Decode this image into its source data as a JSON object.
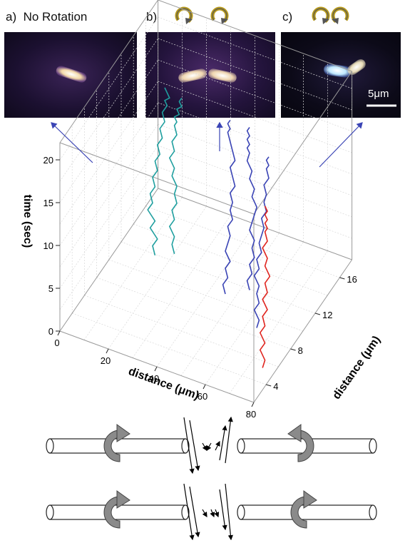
{
  "panels": [
    {
      "letter": "a)",
      "caption": "No Rotation"
    },
    {
      "letter": "b)",
      "caption": ""
    },
    {
      "letter": "c)",
      "caption": ""
    }
  ],
  "scale_bar": "5μm",
  "colors": {
    "teal": "#1f9f9f",
    "blue": "#3a44b5",
    "red": "#e0251f",
    "rotor": "#8a8a8a"
  },
  "chart_data": {
    "type": "line",
    "zlabel": "time (sec)",
    "xlabel": "distance (μm)",
    "ylabel": "distance (μm)",
    "z_ticks": [
      "0",
      "5",
      "10",
      "15",
      "20"
    ],
    "x_ticks": [
      "0",
      "20",
      "40",
      "60",
      "80"
    ],
    "y_ticks": [
      "4",
      "8",
      "12",
      "16"
    ],
    "zlim": [
      0,
      22
    ],
    "xlim": [
      0,
      80
    ],
    "ylim": [
      2,
      18
    ],
    "series": [
      {
        "group": "a",
        "color": "#1f9f9f",
        "y_position": 10,
        "x": [
          19,
          18,
          20,
          17,
          19,
          16,
          18,
          17,
          19,
          18,
          20,
          19,
          21,
          20,
          22,
          21,
          23,
          22,
          24,
          23,
          25,
          24,
          23
        ],
        "t": [
          2.5,
          3.5,
          4.5,
          5.5,
          6.5,
          7.5,
          8.5,
          9.5,
          10.5,
          11.5,
          12.5,
          13.5,
          14.5,
          15.5,
          16.5,
          17.5,
          18.5,
          19.5,
          20.5,
          21.0,
          21.5,
          22.0,
          22.5
        ]
      },
      {
        "group": "a",
        "color": "#1f9f9f",
        "y_position": 10,
        "x": [
          27,
          26,
          27,
          25,
          27,
          26,
          28,
          27,
          28,
          26,
          27,
          25,
          27,
          26,
          28,
          27,
          28,
          27,
          29,
          28,
          30,
          29,
          30
        ],
        "t": [
          3.5,
          4.5,
          5.5,
          6.5,
          7.5,
          8.5,
          9.5,
          10.5,
          11.5,
          12.5,
          13.5,
          14.5,
          15.5,
          16.5,
          17.5,
          18.5,
          19.0,
          19.5,
          20.0,
          20.5,
          21.0,
          21.5,
          22.0
        ]
      },
      {
        "group": "b",
        "color": "#3a44b5",
        "y_position": 10,
        "x": [
          48,
          47,
          49,
          48,
          50,
          48,
          49,
          50,
          49,
          51,
          50,
          51,
          50,
          52,
          51,
          50,
          52,
          51,
          50,
          49,
          50,
          49,
          50
        ],
        "t": [
          1.0,
          2.0,
          3.0,
          4.0,
          5.0,
          6.0,
          7.0,
          8.0,
          9.0,
          10.0,
          11.0,
          12.0,
          13.0,
          14.0,
          15.0,
          16.0,
          17.0,
          18.0,
          19.0,
          20.0,
          20.5,
          21.0,
          21.5
        ]
      },
      {
        "group": "b",
        "color": "#3a44b5",
        "y_position": 10,
        "x": [
          58,
          57,
          59,
          58,
          60,
          59,
          60,
          58,
          59,
          60,
          61,
          59,
          60,
          58,
          59,
          57,
          58,
          57,
          58,
          57,
          58,
          57,
          58
        ],
        "t": [
          2.5,
          3.5,
          4.5,
          5.5,
          6.5,
          7.5,
          8.5,
          9.5,
          10.5,
          11.5,
          12.5,
          13.5,
          14.5,
          15.5,
          16.5,
          17.5,
          18.5,
          19.0,
          19.5,
          20.0,
          20.5,
          21.0,
          21.5
        ]
      },
      {
        "group": "c",
        "color": "#3a44b5",
        "y_position": 8,
        "x": [
          66,
          67,
          65,
          67,
          66,
          67,
          65,
          67,
          66,
          68,
          67,
          68,
          69,
          68,
          70,
          69,
          70,
          69,
          71,
          70,
          71,
          70,
          71
        ],
        "t": [
          1.0,
          2.0,
          3.0,
          4.0,
          5.0,
          6.0,
          7.0,
          8.0,
          9.0,
          10.0,
          11.0,
          12.0,
          13.0,
          14.0,
          15.0,
          16.0,
          17.0,
          18.0,
          19.0,
          20.0,
          20.5,
          21.0,
          21.5
        ]
      },
      {
        "group": "c",
        "color": "#e0251f",
        "y_position": 5,
        "x": [
          76,
          77,
          75,
          77,
          75,
          77,
          76,
          78,
          76,
          78,
          77,
          79,
          77,
          78,
          76,
          78,
          77,
          78,
          77,
          78,
          77,
          78,
          77
        ],
        "t": [
          0.5,
          1.5,
          2.5,
          3.5,
          4.5,
          5.5,
          6.5,
          7.5,
          8.5,
          9.5,
          10.5,
          11.5,
          12.5,
          13.5,
          14.5,
          15.5,
          16.5,
          17.0,
          17.5,
          18.0,
          18.5,
          19.0,
          19.5
        ]
      }
    ]
  }
}
